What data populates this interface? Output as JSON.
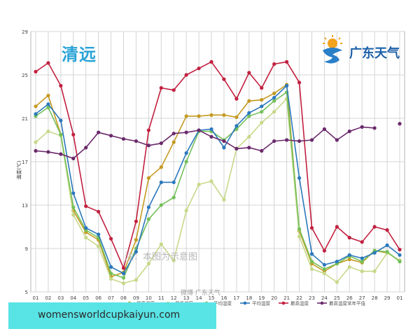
{
  "header": {
    "city": "清远",
    "logo_text": "广东天气",
    "logo_icon": "sun-cloud-logo-icon"
  },
  "watermark": {
    "note": "注：本图为示意图",
    "credit": "微博 广东天气"
  },
  "banner": {
    "text": "womensworldcupkaiyun.com",
    "color": "#58e3e5"
  },
  "chart_data": {
    "type": "line",
    "title": "清远",
    "xlabel": "",
    "ylabel": "温度(℃)",
    "ylim": [
      5,
      29
    ],
    "yticks": [
      5,
      9,
      13,
      17,
      21,
      25,
      29
    ],
    "grid": true,
    "legend_position": "bottom",
    "categories": [
      "01",
      "02",
      "03",
      "04",
      "05",
      "06",
      "07",
      "08",
      "09",
      "10",
      "11",
      "12",
      "13",
      "14",
      "15",
      "16",
      "17",
      "18",
      "19",
      "20",
      "21",
      "22",
      "23",
      "24",
      "25",
      "26",
      "27",
      "28",
      "29",
      "01"
    ],
    "series": [
      {
        "name": "最高温度",
        "color": "#c49a22",
        "values": [
          22.1,
          23.1,
          19.5,
          12.5,
          10.5,
          9.8,
          6.4,
          6.8,
          9.8,
          15.5,
          16.5,
          18.8,
          21.2,
          21.2,
          21.3,
          21.3,
          21.1,
          22.6,
          22.7,
          23.3,
          24.1,
          10.6,
          7.6,
          6.9,
          7.6,
          8.0,
          7.7,
          8.8,
          8.6,
          7.9
        ]
      },
      {
        "name": "最低温度",
        "color": "#c6d888",
        "values": [
          18.8,
          19.8,
          19.4,
          12.1,
          10.0,
          9.2,
          6.2,
          5.8,
          6.1,
          7.6,
          9.4,
          7.9,
          12.5,
          14.9,
          15.2,
          13.5,
          18.2,
          19.3,
          20.6,
          21.6,
          22.8,
          10.1,
          7.1,
          6.7,
          5.9,
          7.3,
          6.9,
          6.9,
          8.6,
          7.9
        ]
      },
      {
        "name": "平均温度",
        "color": "#74c05a",
        "values": [
          21.2,
          22.0,
          19.5,
          12.8,
          10.7,
          10.0,
          6.7,
          6.3,
          9.0,
          11.7,
          13.0,
          13.7,
          17.0,
          19.8,
          19.8,
          19.0,
          20.0,
          21.2,
          21.6,
          22.6,
          23.4,
          10.8,
          7.8,
          7.1,
          7.6,
          8.3,
          7.8,
          8.8,
          8.7,
          7.8
        ]
      },
      {
        "name": "平均温度",
        "color": "#2b78bc",
        "values": [
          21.4,
          22.3,
          20.8,
          14.1,
          10.9,
          10.3,
          7.3,
          6.7,
          8.7,
          12.8,
          15.1,
          15.1,
          17.8,
          19.9,
          20.0,
          18.3,
          20.3,
          21.5,
          22.1,
          22.9,
          24.0,
          15.5,
          8.5,
          7.5,
          7.8,
          8.4,
          8.1,
          8.6,
          9.3,
          8.4
        ]
      },
      {
        "name": "最高温度",
        "color": "#c2203f",
        "values": [
          25.3,
          26.1,
          24.0,
          19.5,
          12.9,
          12.4,
          9.9,
          7.2,
          11.5,
          19.9,
          23.8,
          23.6,
          25.0,
          25.6,
          26.2,
          24.6,
          22.8,
          25.2,
          23.8,
          26.0,
          26.2,
          24.3,
          10.9,
          8.8,
          11.0,
          10.0,
          9.6,
          11.0,
          10.7,
          8.9
        ]
      },
      {
        "name": "最高温度常年平值",
        "color": "#6b2a6b",
        "values": [
          18.0,
          17.9,
          17.7,
          17.3,
          18.3,
          19.7,
          19.4,
          19.1,
          18.9,
          18.5,
          18.7,
          19.6,
          19.7,
          19.9,
          19.3,
          18.9,
          18.2,
          18.3,
          18.0,
          18.9,
          19.0,
          18.9,
          19.0,
          20.0,
          19.0,
          19.8,
          20.2,
          20.1,
          null,
          20.5
        ]
      }
    ]
  }
}
